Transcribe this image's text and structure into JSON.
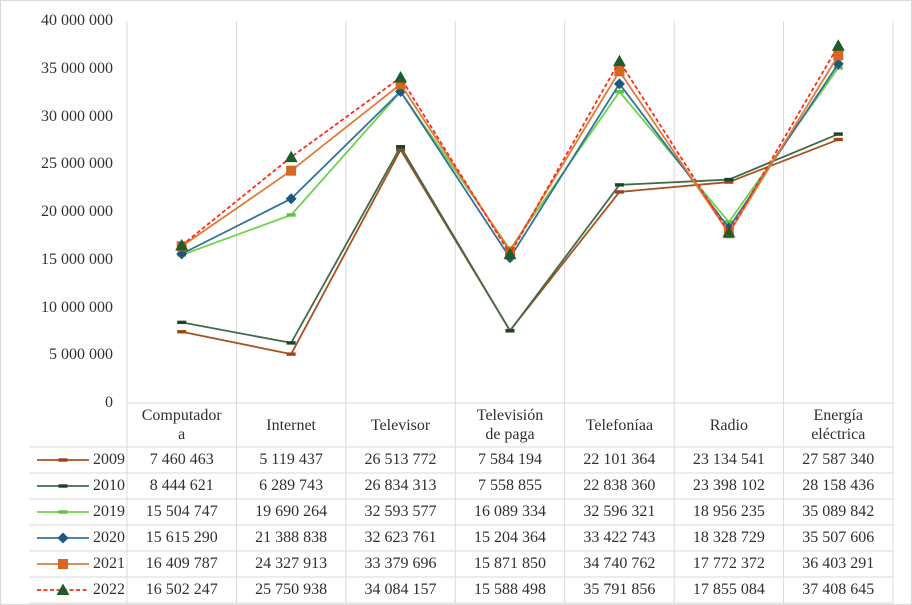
{
  "chart_data": {
    "type": "line",
    "title": "",
    "xlabel": "",
    "ylabel": "",
    "categories": [
      "Computadora",
      "Internet",
      "Televisor",
      "Televisión de paga",
      "Telefoníaa",
      "Radio",
      "Energía eléctrica"
    ],
    "series": [
      {
        "name": "2009",
        "line_color": "#A9511F",
        "marker": "dash",
        "marker_color": "#9E4318",
        "dashed": false,
        "values": [
          7460463,
          5119437,
          26513772,
          7584194,
          22101364,
          23134541,
          27587340
        ]
      },
      {
        "name": "2010",
        "line_color": "#3F6B4A",
        "marker": "dash",
        "marker_color": "#1A4428",
        "dashed": false,
        "values": [
          8444621,
          6289743,
          26834313,
          7558855,
          22838360,
          23398102,
          28158436
        ]
      },
      {
        "name": "2019",
        "line_color": "#6FD24E",
        "marker": "dash",
        "marker_color": "#5BC63A",
        "dashed": false,
        "values": [
          15504747,
          19690264,
          32593577,
          16089334,
          32596321,
          18956235,
          35089842
        ]
      },
      {
        "name": "2020",
        "line_color": "#33729B",
        "marker": "diamond",
        "marker_color": "#1F587C",
        "dashed": false,
        "values": [
          15615290,
          21388838,
          32623761,
          15204364,
          33422743,
          18328729,
          35507606
        ]
      },
      {
        "name": "2021",
        "line_color": "#E07B3A",
        "marker": "square",
        "marker_color": "#D2691F",
        "dashed": false,
        "values": [
          16409787,
          24327913,
          33379696,
          15871850,
          34740762,
          17772372,
          36403291
        ]
      },
      {
        "name": "2022",
        "line_color": "#FF2B16",
        "marker": "triangle",
        "marker_color": "#1E5C2C",
        "dashed": true,
        "values": [
          16502247,
          25750938,
          34084157,
          15588498,
          35791856,
          17855084,
          37408645
        ]
      }
    ],
    "ylim": [
      0,
      40000000
    ],
    "y_tick_step": 5000000,
    "y_tick_labels": [
      "0",
      "5 000 000",
      "10 000 000",
      "15 000 000",
      "20 000 000",
      "25 000 000",
      "30 000 000",
      "35 000 000",
      "40 000 000"
    ],
    "grid": "vertical-only",
    "legend_position": "table-left",
    "number_format": "space-separated"
  },
  "table": {
    "headers": [
      "Computador\na",
      "Internet",
      "Televisor",
      "Televisión\nde paga",
      "Telefoníaa",
      "Radio",
      "Energía\neléctrica"
    ],
    "rows": [
      {
        "year": "2009",
        "cells": [
          "7 460 463",
          "5 119 437",
          "26 513 772",
          "7 584 194",
          "22 101 364",
          "23 134 541",
          "27 587 340"
        ]
      },
      {
        "year": "2010",
        "cells": [
          "8 444 621",
          "6 289 743",
          "26 834 313",
          "7 558 855",
          "22 838 360",
          "23 398 102",
          "28 158 436"
        ]
      },
      {
        "year": "2019",
        "cells": [
          "15 504 747",
          "19 690 264",
          "32 593 577",
          "16 089 334",
          "32 596 321",
          "18 956 235",
          "35 089 842"
        ]
      },
      {
        "year": "2020",
        "cells": [
          "15 615 290",
          "21 388 838",
          "32 623 761",
          "15 204 364",
          "33 422 743",
          "18 328 729",
          "35 507 606"
        ]
      },
      {
        "year": "2021",
        "cells": [
          "16 409 787",
          "24 327 913",
          "33 379 696",
          "15 871 850",
          "34 740 762",
          "17 772 372",
          "36 403 291"
        ]
      },
      {
        "year": "2022",
        "cells": [
          "16 502 247",
          "25 750 938",
          "34 084 157",
          "15 588 498",
          "35 791 856",
          "17 855 084",
          "37 408 645"
        ]
      }
    ]
  },
  "colors": {
    "grid": "#d9d9d9",
    "border": "#d9d9d9",
    "text": "#303030"
  }
}
